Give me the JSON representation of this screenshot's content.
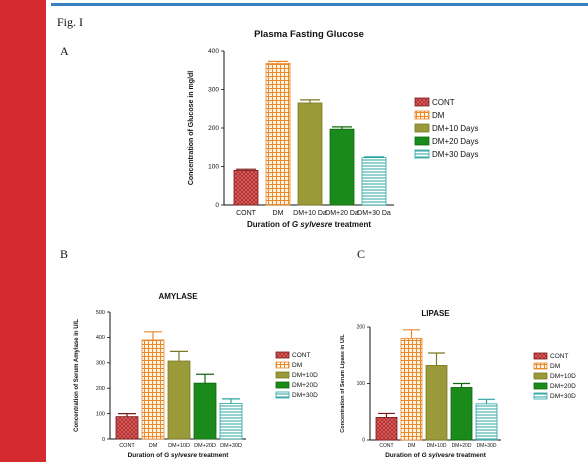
{
  "figure_label": "Fig. I",
  "panels": {
    "a": "A",
    "b": "B",
    "c": "C"
  },
  "legend_full": [
    "CONT",
    "DM",
    "DM+10 Days",
    "DM+20 Days",
    "DM+30 Days"
  ],
  "legend_short": [
    "CONT",
    "DM",
    "DM+10D",
    "DM+20D",
    "DM+30D"
  ],
  "colors": {
    "cont": "#b03030",
    "dm": "#e8892c",
    "d10": "#9a9a3a",
    "d20": "#1a8a1a",
    "d30": "#2aa3a3",
    "accent_bar": "#d42a30",
    "frame_line": "#3a7fc1"
  },
  "chart_data": [
    {
      "type": "bar",
      "title": "Plasma Fasting Glucose",
      "ylabel": "Concentration of Glucose in mg/dl",
      "xlabel_parts": [
        "Duration of ",
        "G sylvesre",
        " treatment"
      ],
      "categories": [
        "CONT",
        "DM",
        "DM+10 Da",
        "DM+20 Da",
        "DM+30 Da"
      ],
      "values": [
        90,
        368,
        265,
        197,
        123
      ],
      "errors": [
        3,
        5,
        8,
        6,
        2
      ],
      "ylim": [
        0,
        400
      ],
      "yticks": [
        0,
        100,
        200,
        300,
        400
      ],
      "grid": false,
      "legend": "right"
    },
    {
      "type": "bar",
      "title": "AMYLASE",
      "ylabel": "Concentration of Serum Amylase in U/L",
      "xlabel_parts": [
        "Duration of ",
        "G sylvesre",
        " treatment"
      ],
      "categories": [
        "CONT",
        "DM",
        "DM+10D",
        "DM+20D",
        "DM+30D"
      ],
      "values": [
        88,
        390,
        307,
        220,
        140
      ],
      "errors": [
        12,
        32,
        38,
        35,
        18
      ],
      "ylim": [
        0,
        500
      ],
      "yticks": [
        0,
        100,
        200,
        300,
        400,
        500
      ],
      "grid": false,
      "legend": "right"
    },
    {
      "type": "bar",
      "title": "LIPASE",
      "ylabel": "Concentration of Serum Lipase in U/L",
      "xlabel_parts": [
        "Duration of ",
        "G sylvesre",
        " treatment"
      ],
      "categories": [
        "CONT",
        "DM",
        "DM+10D",
        "DM+20D",
        "DM+30D"
      ],
      "values": [
        40,
        180,
        132,
        93,
        64
      ],
      "errors": [
        7,
        15,
        22,
        7,
        8
      ],
      "ylim": [
        0,
        200
      ],
      "yticks": [
        0,
        100,
        200
      ],
      "grid": false,
      "legend": "right"
    }
  ]
}
